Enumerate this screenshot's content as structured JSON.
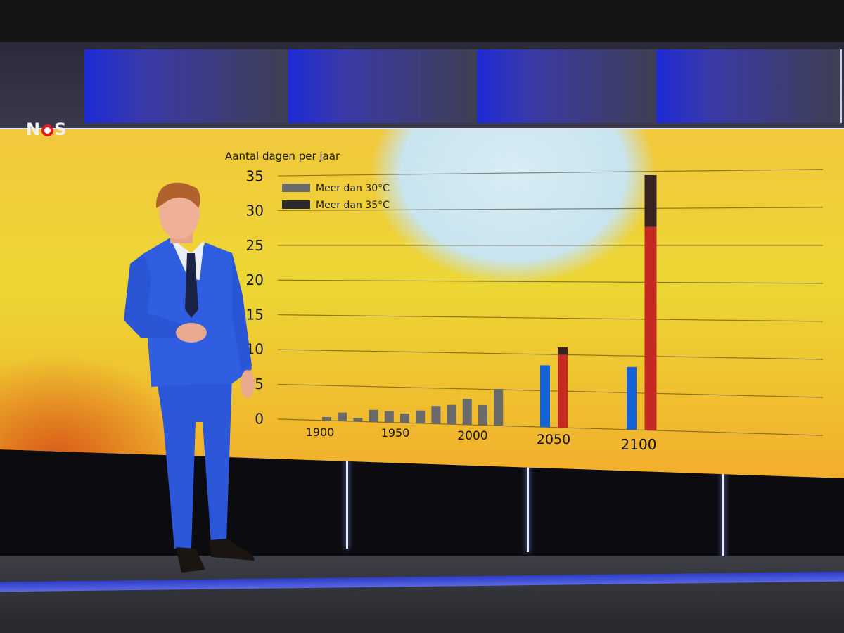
{
  "broadcaster": {
    "logo_text_left": "N",
    "logo_text_right": "S"
  },
  "chart_data": {
    "type": "bar",
    "ylabel": "Aantal dagen per jaar",
    "ylim": [
      0,
      35
    ],
    "yticks": [
      0,
      5,
      10,
      15,
      20,
      25,
      30,
      35
    ],
    "xticks": [
      "1900",
      "1950",
      "2000",
      "2050",
      "2100"
    ],
    "legend": {
      "placement": "top-left",
      "items": [
        {
          "label": "Meer dan 30°C",
          "color": "#6a6a6a"
        },
        {
          "label": "Meer dan 35°C",
          "color": "#2a2a2a"
        }
      ]
    },
    "historical": {
      "years": [
        1900,
        1910,
        1920,
        1930,
        1940,
        1950,
        1960,
        1970,
        1980,
        1990,
        2000,
        2010
      ],
      "meer_dan_30": [
        0.5,
        1.2,
        0.5,
        1.7,
        1.6,
        1.3,
        1.8,
        2.5,
        2.7,
        3.6,
        2.8,
        5.1
      ],
      "color": "#6a6a6a"
    },
    "projections": [
      {
        "year": 2050,
        "blue": 8.5,
        "red_total": 11.0,
        "red_35": 1.0
      },
      {
        "year": 2100,
        "blue": 8.5,
        "red_total": 34.5,
        "red_35": 7.0
      }
    ],
    "projection_colors": {
      "blue": "#1464d8",
      "red": "#c42a22",
      "dark": "#3a2422"
    }
  }
}
